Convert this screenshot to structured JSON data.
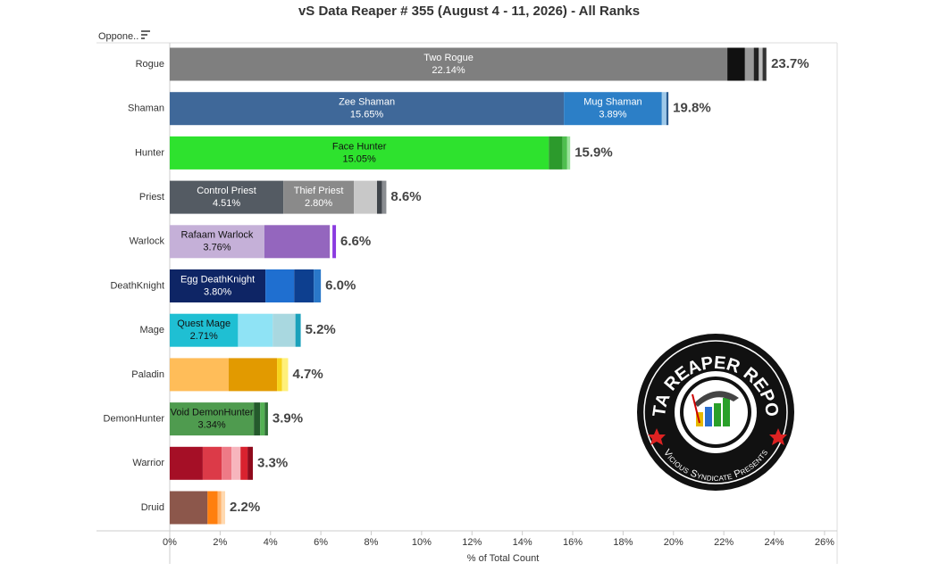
{
  "chart_data": {
    "type": "stacked-bar-horizontal",
    "title": "vS Data Reaper # 355 (August 4 - 11, 2026) - All Ranks",
    "y_header": "Oppone..",
    "x_label": "% of Total Count",
    "xlim": [
      0,
      26.5
    ],
    "xticks": [
      {
        "value": 0,
        "label": "0%"
      },
      {
        "value": 2,
        "label": "2%"
      },
      {
        "value": 4,
        "label": "4%"
      },
      {
        "value": 6,
        "label": "6%"
      },
      {
        "value": 8,
        "label": "8%"
      },
      {
        "value": 10,
        "label": "10%"
      },
      {
        "value": 12,
        "label": "12%"
      },
      {
        "value": 14,
        "label": "14%"
      },
      {
        "value": 16,
        "label": "16%"
      },
      {
        "value": 18,
        "label": "18%"
      },
      {
        "value": 20,
        "label": "20%"
      },
      {
        "value": 22,
        "label": "22%"
      },
      {
        "value": 24,
        "label": "24%"
      },
      {
        "value": 26,
        "label": "26%"
      }
    ],
    "bars": [
      {
        "category": "Rogue",
        "total": 23.7,
        "total_label": "23.7%",
        "segments": [
          {
            "name": "Two Rogue",
            "value": 22.14,
            "value_label": "22.14%",
            "color": "#7f7f7f",
            "label_color": "#ffffff"
          },
          {
            "value": 0.7,
            "color": "#111111"
          },
          {
            "value": 0.35,
            "color": "#9a9a9a"
          },
          {
            "value": 0.2,
            "color": "#222222"
          },
          {
            "value": 0.15,
            "color": "#bdbdbd"
          },
          {
            "value": 0.15,
            "color": "#333333"
          }
        ]
      },
      {
        "category": "Shaman",
        "total": 19.8,
        "total_label": "19.8%",
        "segments": [
          {
            "name": "Zee Shaman",
            "value": 15.65,
            "value_label": "15.65%",
            "color": "#3f6899",
            "label_color": "#ffffff"
          },
          {
            "name": "Mug Shaman",
            "value": 3.89,
            "value_label": "3.89%",
            "color": "#2c7fc7",
            "label_color": "#ffffff"
          },
          {
            "value": 0.18,
            "color": "#9ec9ea"
          },
          {
            "value": 0.08,
            "color": "#2a5b8f"
          }
        ]
      },
      {
        "category": "Hunter",
        "total": 15.9,
        "total_label": "15.9%",
        "segments": [
          {
            "name": "Face Hunter",
            "value": 15.05,
            "value_label": "15.05%",
            "color": "#2ee22e",
            "label_color": "#111111"
          },
          {
            "value": 0.55,
            "color": "#2c9a2c"
          },
          {
            "value": 0.18,
            "color": "#4fbf4f"
          },
          {
            "value": 0.12,
            "color": "#9be39b"
          }
        ]
      },
      {
        "category": "Priest",
        "total": 8.6,
        "total_label": "8.6%",
        "segments": [
          {
            "name": "Control Priest",
            "value": 4.51,
            "value_label": "4.51%",
            "color": "#545b63",
            "label_color": "#ffffff"
          },
          {
            "name": "Thief Priest",
            "value": 2.8,
            "value_label": "2.80%",
            "color": "#8a8a8a",
            "label_color": "#ffffff"
          },
          {
            "value": 0.92,
            "color": "#c8c8c8"
          },
          {
            "value": 0.2,
            "color": "#3f444a"
          },
          {
            "value": 0.17,
            "color": "#8a8d91"
          }
        ]
      },
      {
        "category": "Warlock",
        "total": 6.6,
        "total_label": "6.6%",
        "segments": [
          {
            "name": "Rafaam Warlock",
            "value": 3.76,
            "value_label": "3.76%",
            "color": "#c5b0d8",
            "label_color": "#111111"
          },
          {
            "value": 2.6,
            "color": "#9466be"
          },
          {
            "value": 0.1,
            "color": "#ffffff"
          },
          {
            "value": 0.14,
            "color": "#8a3be0"
          }
        ]
      },
      {
        "category": "DeathKnight",
        "total": 6.0,
        "total_label": "6.0%",
        "segments": [
          {
            "name": "Egg DeathKnight",
            "value": 3.8,
            "value_label": "3.80%",
            "color": "#0e2565",
            "label_color": "#ffffff"
          },
          {
            "value": 1.14,
            "color": "#1f6fd0"
          },
          {
            "value": 0.78,
            "color": "#0d3f8f"
          },
          {
            "value": 0.28,
            "color": "#2a78c9"
          }
        ]
      },
      {
        "category": "Mage",
        "total": 5.2,
        "total_label": "5.2%",
        "segments": [
          {
            "name": "Quest Mage",
            "value": 2.71,
            "value_label": "2.71%",
            "color": "#1fbfd3",
            "label_color": "#111111"
          },
          {
            "value": 1.38,
            "color": "#8fe3f5"
          },
          {
            "value": 0.9,
            "color": "#a9d8e0"
          },
          {
            "value": 0.21,
            "color": "#1aa1bb"
          }
        ]
      },
      {
        "category": "Paladin",
        "total": 4.7,
        "total_label": "4.7%",
        "segments": [
          {
            "value": 2.34,
            "color": "#ffbd59"
          },
          {
            "value": 1.92,
            "color": "#e29a00"
          },
          {
            "value": 0.2,
            "color": "#f7d31a"
          },
          {
            "value": 0.24,
            "color": "#fff07a"
          }
        ]
      },
      {
        "category": "DemonHunter",
        "total": 3.9,
        "total_label": "3.9%",
        "segments": [
          {
            "name": "Void DemonHunter",
            "value": 3.34,
            "value_label": "3.34%",
            "color": "#4f9b4f",
            "label_color": "#111111"
          },
          {
            "value": 0.25,
            "color": "#245a2c"
          },
          {
            "value": 0.18,
            "color": "#53b153"
          },
          {
            "value": 0.13,
            "color": "#2f6e36"
          }
        ]
      },
      {
        "category": "Warrior",
        "total": 3.3,
        "total_label": "3.3%",
        "segments": [
          {
            "value": 1.31,
            "color": "#a50f26"
          },
          {
            "value": 0.75,
            "color": "#dc3a48"
          },
          {
            "value": 0.39,
            "color": "#ee7a86"
          },
          {
            "value": 0.36,
            "color": "#f7b5bd"
          },
          {
            "value": 0.28,
            "color": "#d9222f"
          },
          {
            "value": 0.21,
            "color": "#8f0a1c"
          }
        ]
      },
      {
        "category": "Druid",
        "total": 2.2,
        "total_label": "2.2%",
        "segments": [
          {
            "value": 1.5,
            "color": "#8c574b"
          },
          {
            "value": 0.4,
            "color": "#ff7f0e"
          },
          {
            "value": 0.15,
            "color": "#ffb36b"
          },
          {
            "value": 0.15,
            "color": "#ffd9b0"
          }
        ]
      }
    ],
    "logo": {
      "title": "DATA REAPER REPORT",
      "subtitle": "Vicious Syndicate Presents"
    }
  }
}
